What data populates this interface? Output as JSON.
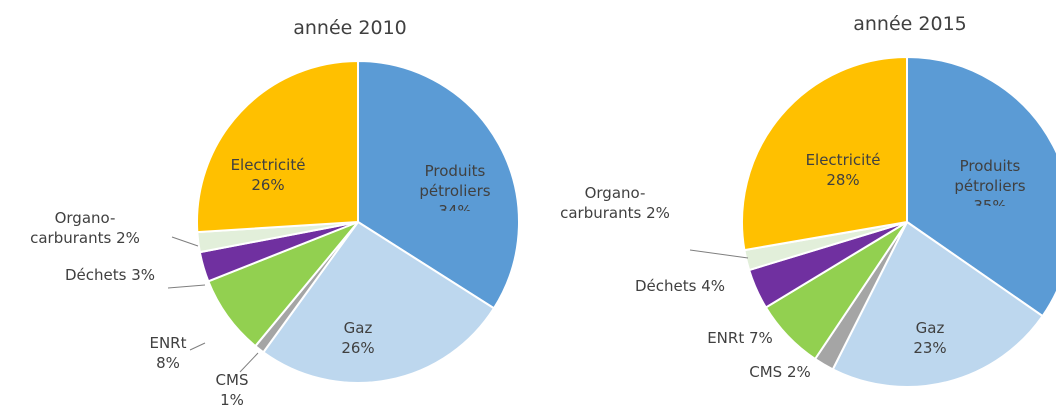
{
  "chart_data": [
    {
      "type": "pie",
      "title": "année 2010",
      "categories": [
        "Produits pétroliers",
        "Gaz",
        "CMS",
        "ENRt",
        "Déchets",
        "Organo-carburants",
        "Electricité"
      ],
      "values": [
        34,
        26,
        1,
        8,
        3,
        2,
        26
      ],
      "value_labels": [
        "34%",
        "26%",
        "1%",
        "8%",
        "3%",
        "2%",
        "26%"
      ],
      "colors": [
        "#5b9bd5",
        "#bdd7ee",
        "#a5a5a5",
        "#92d050",
        "#7030a0",
        "#e2efda",
        "#ffc000"
      ]
    },
    {
      "type": "pie",
      "title": "année 2015",
      "categories": [
        "Produits pétroliers",
        "Gaz",
        "CMS",
        "ENRt",
        "Déchets",
        "Organo-carburants",
        "Electricité"
      ],
      "values": [
        35,
        23,
        2,
        7,
        4,
        2,
        28
      ],
      "value_labels": [
        "35%",
        "23%",
        "2%",
        "7%",
        "4%",
        "2%",
        "28%"
      ],
      "colors": [
        "#5b9bd5",
        "#bdd7ee",
        "#a5a5a5",
        "#92d050",
        "#7030a0",
        "#e2efda",
        "#ffc000"
      ]
    }
  ]
}
